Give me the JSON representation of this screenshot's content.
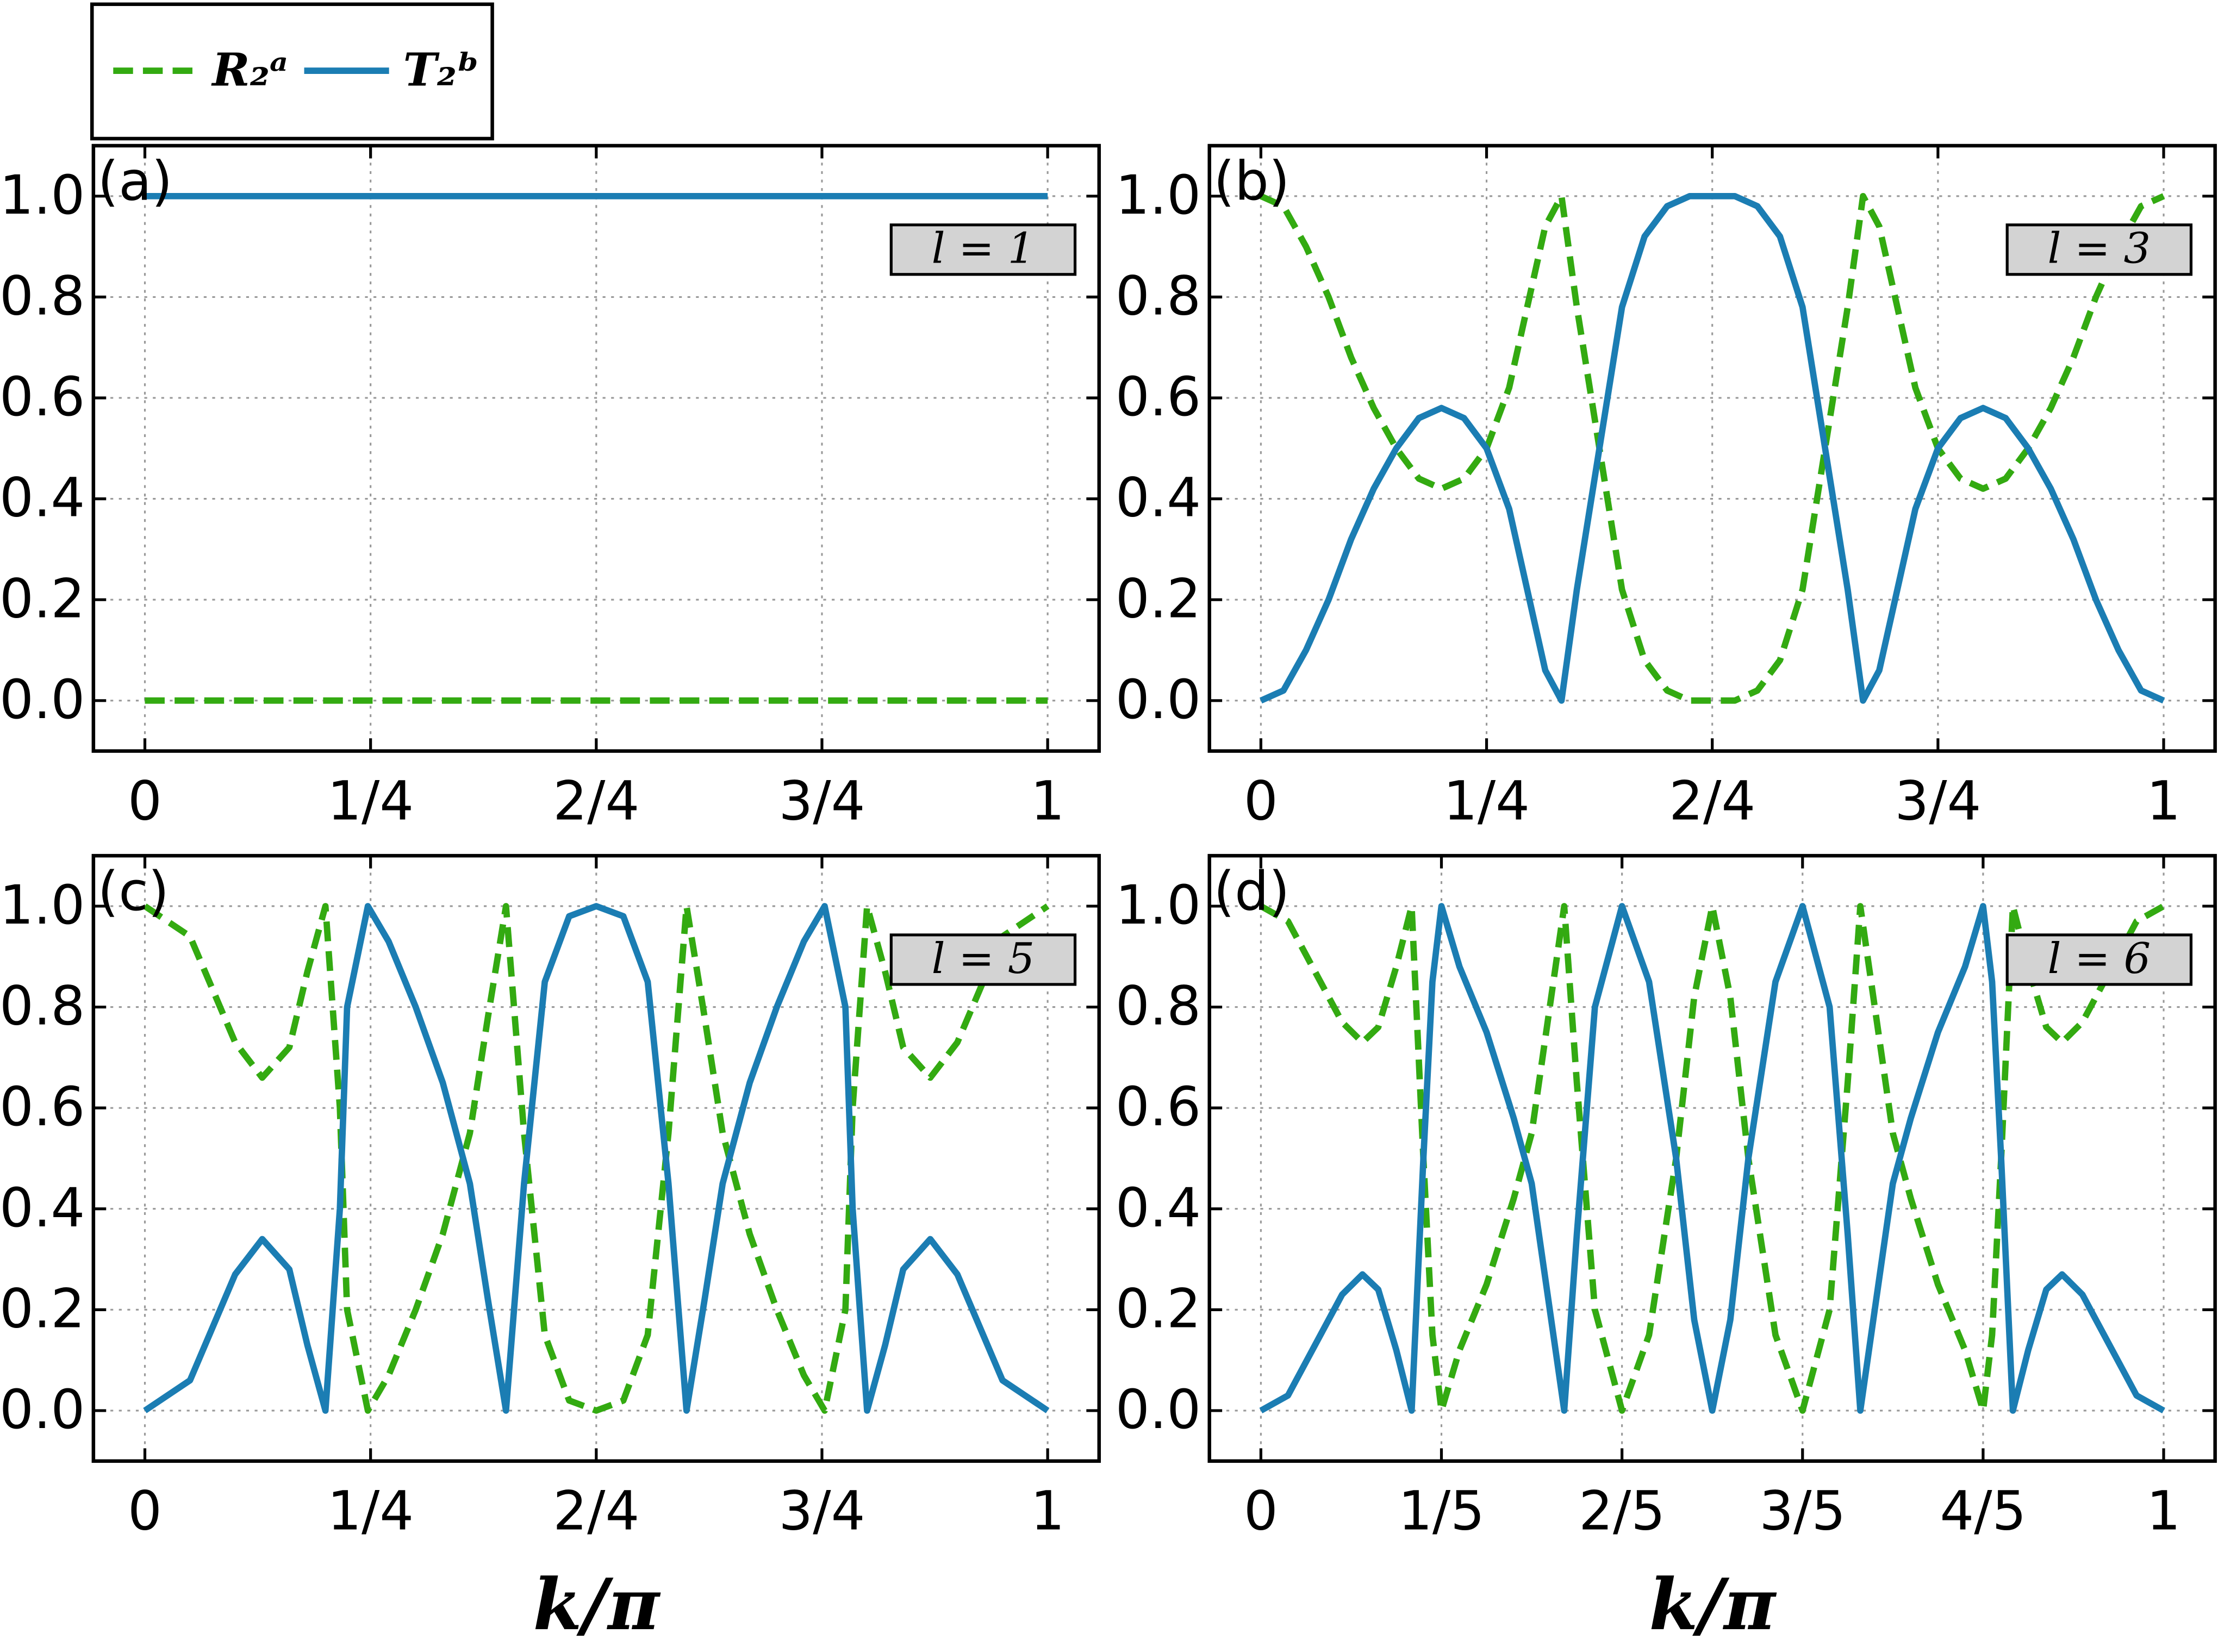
{
  "chart_data": [
    {
      "type": "line",
      "label": "(a)",
      "annotation": "l = 1",
      "x": [
        0,
        1
      ],
      "series": [
        {
          "name": "R₂ᵃ",
          "color": "#33aa11",
          "dash": true,
          "values": [
            0,
            0
          ]
        },
        {
          "name": "T₂ᵇ",
          "color": "#1b7db3",
          "dash": false,
          "values": [
            1,
            1
          ]
        }
      ],
      "xlim": [
        -0.057,
        1.057
      ],
      "ylim": [
        -0.1,
        1.1
      ],
      "xticks": [
        0,
        {
          "value": 0.25,
          "label": "1/4"
        },
        {
          "value": 0.5,
          "label": "2/4"
        },
        {
          "value": 0.75,
          "label": "3/4"
        },
        1
      ],
      "yticks": [
        {
          "value": 0,
          "label": "0.0"
        },
        0.2,
        0.4,
        0.6,
        0.8,
        {
          "value": 1,
          "label": "1.0"
        }
      ],
      "grid": true
    },
    {
      "type": "line",
      "label": "(b)",
      "annotation": "l = 3",
      "x": [
        0,
        0.025,
        0.05,
        0.075,
        0.1,
        0.125,
        0.15,
        0.175,
        0.2,
        0.225,
        0.25,
        0.275,
        0.3,
        0.315,
        0.333,
        0.35,
        0.375,
        0.4,
        0.425,
        0.45,
        0.475,
        0.5,
        0.525,
        0.55,
        0.575,
        0.6,
        0.625,
        0.65,
        0.667,
        0.685,
        0.7,
        0.725,
        0.75,
        0.775,
        0.8,
        0.825,
        0.85,
        0.875,
        0.9,
        0.925,
        0.95,
        0.975,
        1
      ],
      "series": [
        {
          "color": "#33aa11",
          "dash": true,
          "values": [
            1,
            0.98,
            0.9,
            0.8,
            0.68,
            0.58,
            0.5,
            0.44,
            0.42,
            0.44,
            0.5,
            0.62,
            0.82,
            0.94,
            1,
            0.78,
            0.5,
            0.22,
            0.08,
            0.02,
            0,
            0,
            0,
            0.02,
            0.08,
            0.22,
            0.5,
            0.78,
            1,
            0.94,
            0.82,
            0.62,
            0.5,
            0.44,
            0.42,
            0.44,
            0.5,
            0.58,
            0.68,
            0.8,
            0.9,
            0.98,
            1
          ]
        },
        {
          "color": "#1b7db3",
          "dash": false,
          "values": [
            0,
            0.02,
            0.1,
            0.2,
            0.32,
            0.42,
            0.5,
            0.56,
            0.58,
            0.56,
            0.5,
            0.38,
            0.18,
            0.06,
            0,
            0.22,
            0.5,
            0.78,
            0.92,
            0.98,
            1,
            1,
            1,
            0.98,
            0.92,
            0.78,
            0.5,
            0.22,
            0,
            0.06,
            0.18,
            0.38,
            0.5,
            0.56,
            0.58,
            0.56,
            0.5,
            0.42,
            0.32,
            0.2,
            0.1,
            0.02,
            0
          ]
        }
      ],
      "xlim": [
        -0.057,
        1.057
      ],
      "ylim": [
        -0.1,
        1.1
      ],
      "xticks": [
        0,
        {
          "value": 0.25,
          "label": "1/4"
        },
        {
          "value": 0.5,
          "label": "2/4"
        },
        {
          "value": 0.75,
          "label": "3/4"
        },
        1
      ],
      "yticks": [
        {
          "value": 0,
          "label": "0.0"
        },
        0.2,
        0.4,
        0.6,
        0.8,
        {
          "value": 1,
          "label": "1.0"
        }
      ],
      "grid": true
    },
    {
      "type": "line",
      "label": "(c)",
      "annotation": "l = 5",
      "xlabel": "k/π",
      "x": [
        0,
        0.05,
        0.1,
        0.13,
        0.16,
        0.18,
        0.2,
        0.216,
        0.224,
        0.247,
        0.27,
        0.3,
        0.33,
        0.36,
        0.38,
        0.4,
        0.42,
        0.443,
        0.47,
        0.5,
        0.53,
        0.557,
        0.58,
        0.6,
        0.62,
        0.64,
        0.67,
        0.7,
        0.73,
        0.753,
        0.776,
        0.784,
        0.8,
        0.82,
        0.84,
        0.87,
        0.9,
        0.95,
        1
      ],
      "series": [
        {
          "color": "#33aa11",
          "dash": true,
          "values": [
            1,
            0.94,
            0.73,
            0.66,
            0.72,
            0.87,
            1,
            0.6,
            0.2,
            0,
            0.07,
            0.2,
            0.35,
            0.55,
            0.78,
            1,
            0.55,
            0.15,
            0.02,
            0,
            0.02,
            0.15,
            0.55,
            1,
            0.78,
            0.55,
            0.35,
            0.2,
            0.07,
            0,
            0.2,
            0.6,
            1,
            0.87,
            0.72,
            0.66,
            0.73,
            0.94,
            1
          ]
        },
        {
          "color": "#1b7db3",
          "dash": false,
          "values": [
            0,
            0.06,
            0.27,
            0.34,
            0.28,
            0.13,
            0,
            0.4,
            0.8,
            1,
            0.93,
            0.8,
            0.65,
            0.45,
            0.22,
            0,
            0.45,
            0.85,
            0.98,
            1,
            0.98,
            0.85,
            0.45,
            0,
            0.22,
            0.45,
            0.65,
            0.8,
            0.93,
            1,
            0.8,
            0.4,
            0,
            0.13,
            0.28,
            0.34,
            0.27,
            0.06,
            0
          ]
        }
      ],
      "xlim": [
        -0.057,
        1.057
      ],
      "ylim": [
        -0.1,
        1.1
      ],
      "xticks": [
        0,
        {
          "value": 0.25,
          "label": "1/4"
        },
        {
          "value": 0.5,
          "label": "2/4"
        },
        {
          "value": 0.75,
          "label": "3/4"
        },
        1
      ],
      "yticks": [
        {
          "value": 0,
          "label": "0.0"
        },
        0.2,
        0.4,
        0.6,
        0.8,
        {
          "value": 1,
          "label": "1.0"
        }
      ],
      "grid": true
    },
    {
      "type": "line",
      "label": "(d)",
      "annotation": "l = 6",
      "xlabel": "k/π",
      "x": [
        0,
        0.03,
        0.06,
        0.09,
        0.1125,
        0.13,
        0.15,
        0.167,
        0.18,
        0.19,
        0.2,
        0.22,
        0.25,
        0.28,
        0.3,
        0.32,
        0.336,
        0.35,
        0.37,
        0.4,
        0.43,
        0.46,
        0.48,
        0.5,
        0.52,
        0.54,
        0.57,
        0.6,
        0.63,
        0.65,
        0.664,
        0.68,
        0.7,
        0.72,
        0.75,
        0.78,
        0.8,
        0.81,
        0.82,
        0.833,
        0.85,
        0.87,
        0.8875,
        0.91,
        0.94,
        0.97,
        1
      ],
      "series": [
        {
          "color": "#33aa11",
          "dash": true,
          "values": [
            1,
            0.97,
            0.87,
            0.77,
            0.73,
            0.76,
            0.88,
            1,
            0.5,
            0.15,
            0,
            0.12,
            0.25,
            0.42,
            0.55,
            0.8,
            1,
            0.65,
            0.2,
            0,
            0.15,
            0.5,
            0.82,
            1,
            0.82,
            0.5,
            0.15,
            0,
            0.2,
            0.65,
            1,
            0.8,
            0.55,
            0.42,
            0.25,
            0.12,
            0,
            0.15,
            0.5,
            1,
            0.88,
            0.76,
            0.73,
            0.77,
            0.87,
            0.97,
            1
          ]
        },
        {
          "color": "#1b7db3",
          "dash": false,
          "values": [
            0,
            0.03,
            0.13,
            0.23,
            0.27,
            0.24,
            0.12,
            0,
            0.5,
            0.85,
            1,
            0.88,
            0.75,
            0.58,
            0.45,
            0.2,
            0,
            0.35,
            0.8,
            1,
            0.85,
            0.5,
            0.18,
            0,
            0.18,
            0.5,
            0.85,
            1,
            0.8,
            0.35,
            0,
            0.2,
            0.45,
            0.58,
            0.75,
            0.88,
            1,
            0.85,
            0.5,
            0,
            0.12,
            0.24,
            0.27,
            0.23,
            0.13,
            0.03,
            0
          ]
        }
      ],
      "xlim": [
        -0.057,
        1.057
      ],
      "ylim": [
        -0.1,
        1.1
      ],
      "xticks": [
        0,
        {
          "value": 0.2,
          "label": "1/5"
        },
        {
          "value": 0.4,
          "label": "2/5"
        },
        {
          "value": 0.6,
          "label": "3/5"
        },
        {
          "value": 0.8,
          "label": "4/5"
        },
        1
      ],
      "yticks": [
        {
          "value": 0,
          "label": "0.0"
        },
        0.2,
        0.4,
        0.6,
        0.8,
        {
          "value": 1,
          "label": "1.0"
        }
      ],
      "grid": true
    }
  ]
}
